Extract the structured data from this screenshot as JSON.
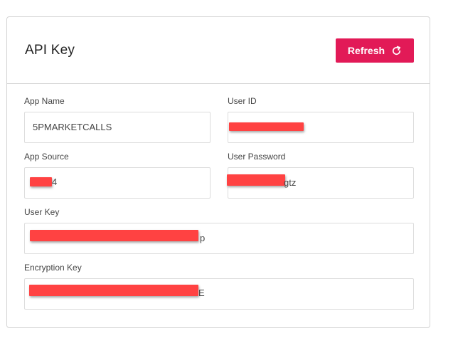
{
  "card": {
    "title": "API Key",
    "refresh_label": "Refresh",
    "refresh_icon": "refresh-icon"
  },
  "fields": {
    "app_name": {
      "label": "App Name",
      "value": "5PMARKETCALLS"
    },
    "user_id": {
      "label": "User ID",
      "value": ""
    },
    "app_source": {
      "label": "App Source",
      "value_tail": "4"
    },
    "user_password": {
      "label": "User Password",
      "value_tail": "gtz"
    },
    "user_key": {
      "label": "User Key",
      "value_tail": "p"
    },
    "encryption_key": {
      "label": "Encryption Key",
      "value_tail": "E"
    }
  },
  "colors": {
    "accent": "#e21a57",
    "redaction": "#ff4242",
    "border": "#d4d4d4"
  }
}
